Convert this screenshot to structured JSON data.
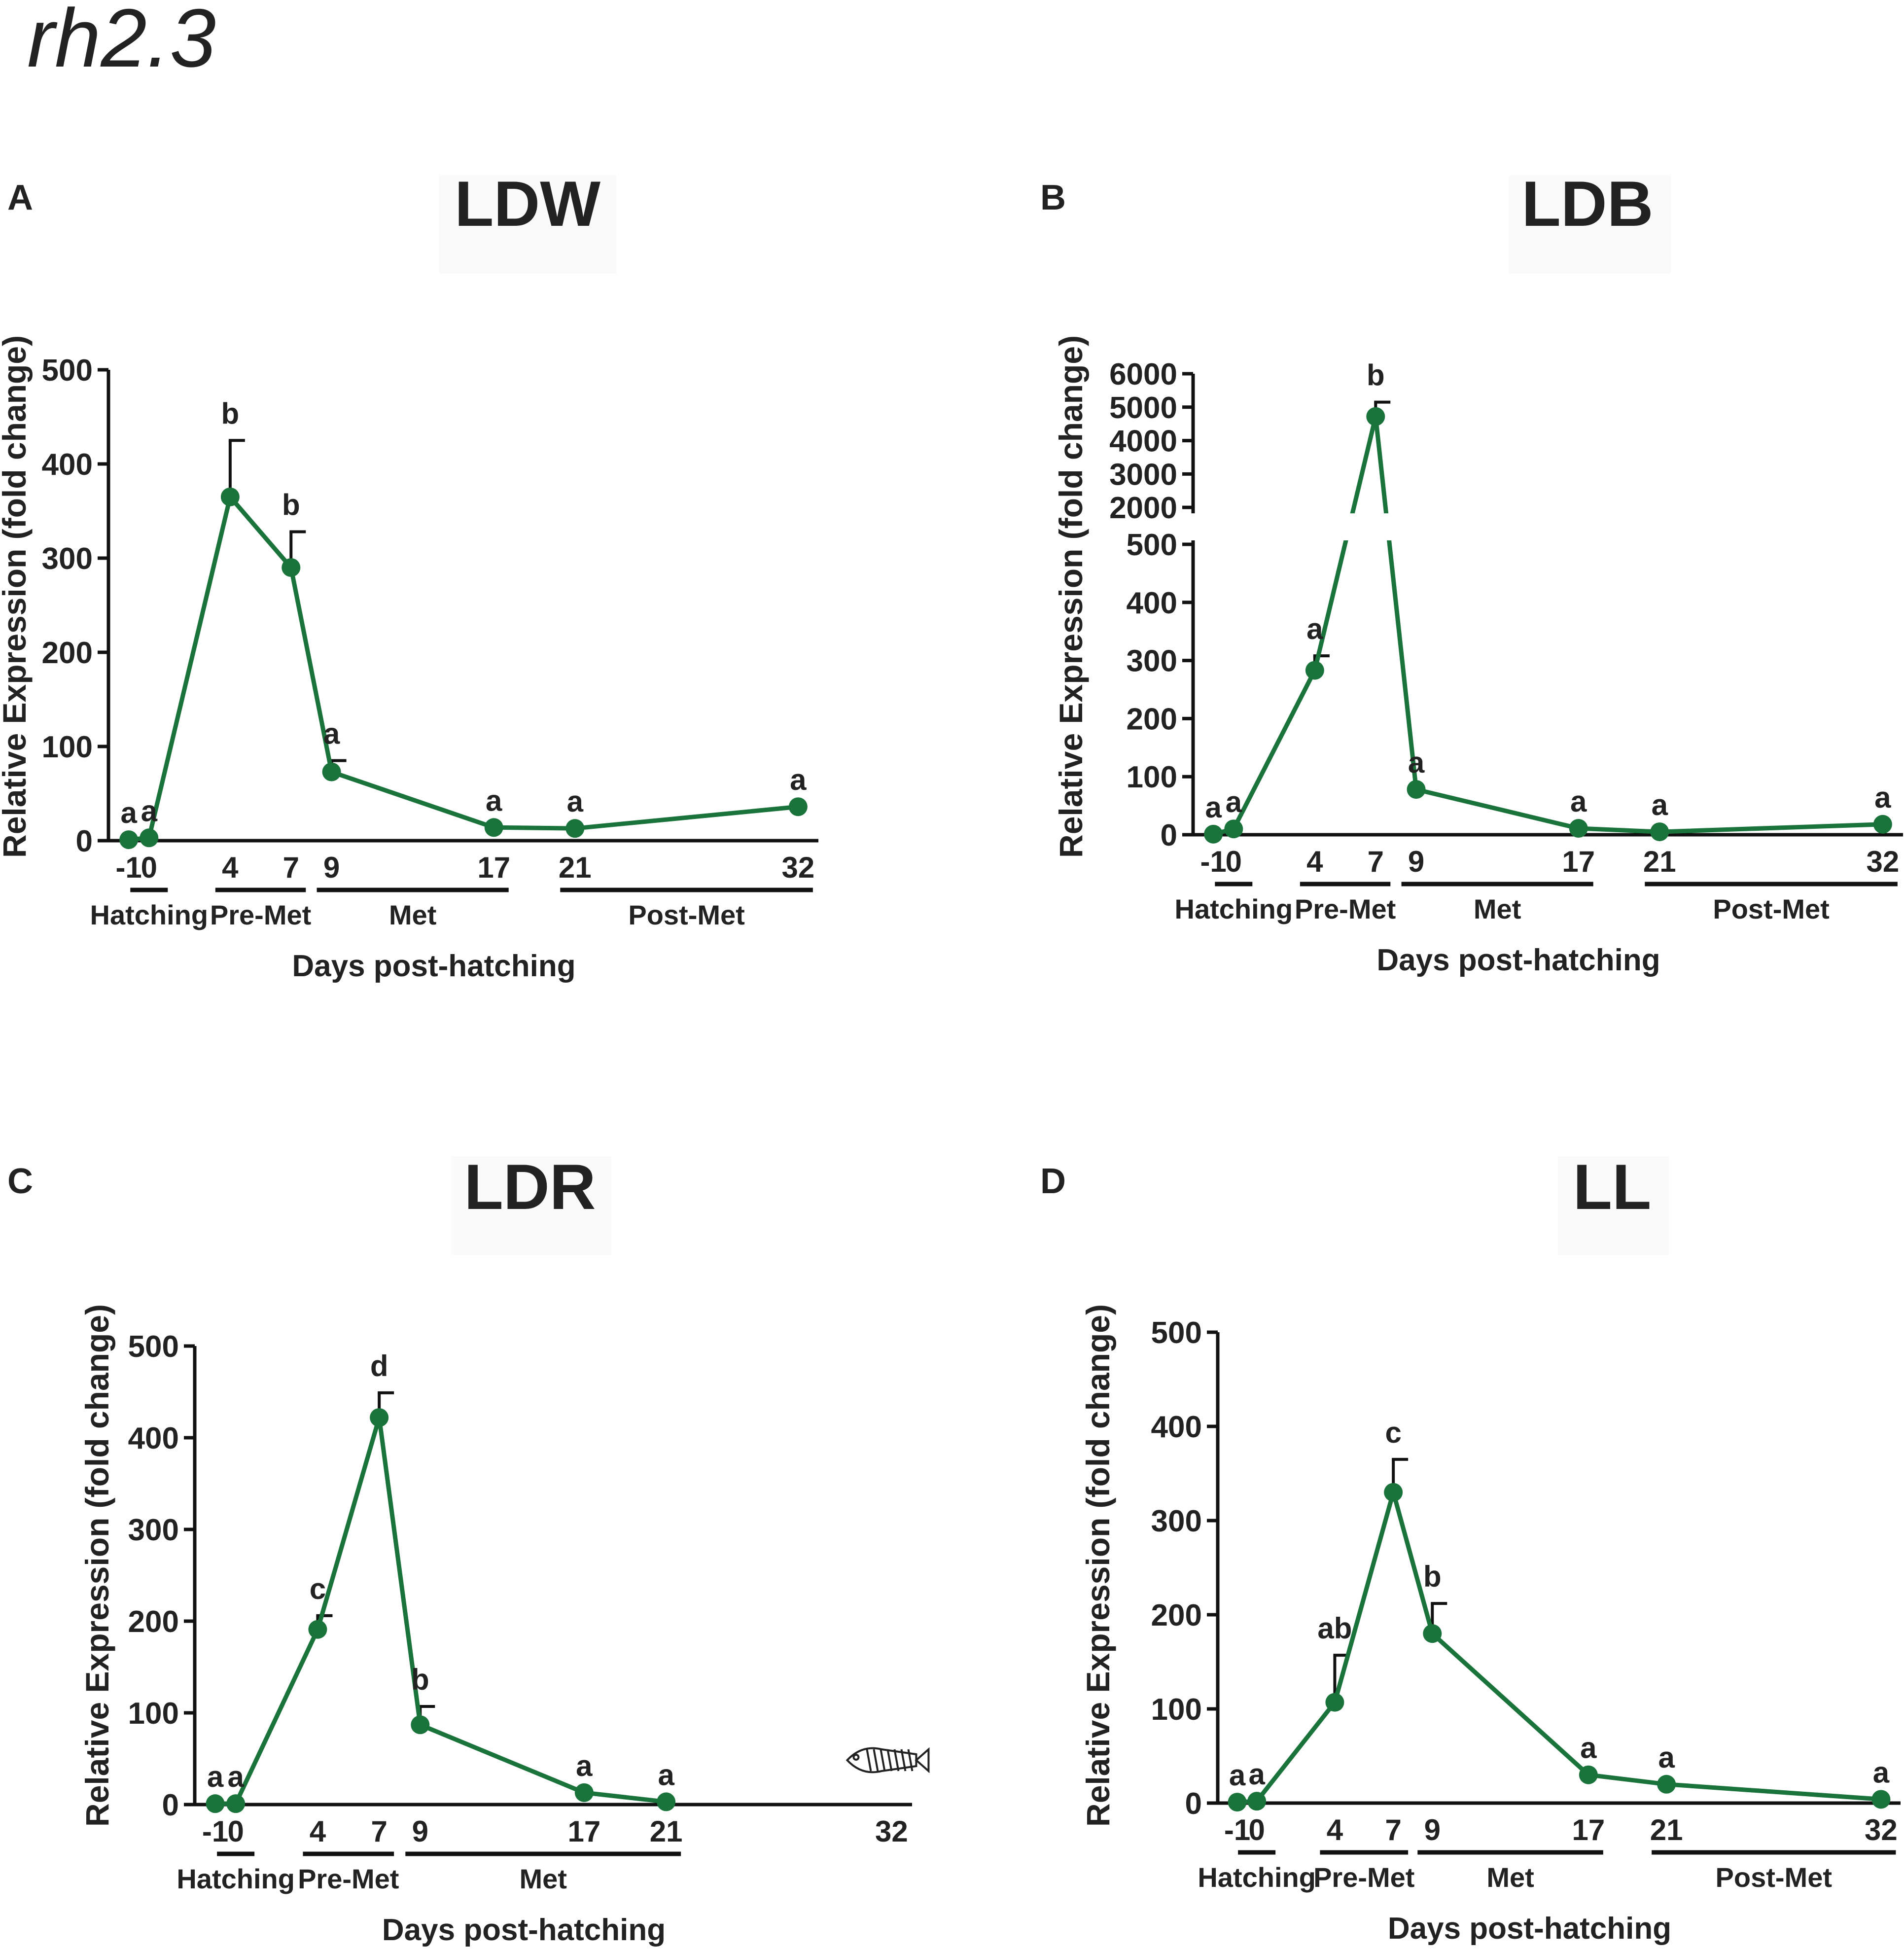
{
  "figure_title": "rh2.3",
  "colors": {
    "series": "#19733a",
    "axis": "#111111",
    "text": "#222222"
  },
  "icons": {
    "fish": "fish-skeleton-icon"
  },
  "chart_data": [
    {
      "panel": "A",
      "title": "LDW",
      "type": "line",
      "xlabel": "Days post-hatching",
      "ylabel": "Relative Expression (fold change)",
      "x": [
        -1,
        0,
        4,
        7,
        9,
        17,
        21,
        32
      ],
      "x_ticks": [
        "-1",
        "0",
        "4",
        "7",
        "9",
        "17",
        "21",
        "32"
      ],
      "values": [
        1,
        3,
        365,
        290,
        73,
        14,
        13,
        36
      ],
      "errors": [
        0,
        0,
        60,
        38,
        12,
        0,
        0,
        0
      ],
      "letters": [
        "a",
        "a",
        "b",
        "b",
        "a",
        "a",
        "a",
        "a"
      ],
      "ylim": [
        0,
        500
      ],
      "y_ticks": [
        0,
        100,
        200,
        300,
        400,
        500
      ],
      "stages": [
        {
          "label": "Hatching",
          "from": 0,
          "to": 0
        },
        {
          "label": "Pre-Met",
          "from": 4,
          "to": 7
        },
        {
          "label": "Met",
          "from": 9,
          "to": 17
        },
        {
          "label": "Post-Met",
          "from": 21,
          "to": 32
        }
      ]
    },
    {
      "panel": "B",
      "title": "LDB",
      "type": "line",
      "xlabel": "Days post-hatching",
      "ylabel": "Relative Expression (fold change)",
      "x": [
        -1,
        0,
        4,
        7,
        9,
        17,
        21,
        32
      ],
      "x_ticks": [
        "-1",
        "0",
        "4",
        "7",
        "9",
        "17",
        "21",
        "32"
      ],
      "values": [
        1,
        10,
        283,
        4720,
        78,
        11,
        5,
        18
      ],
      "errors": [
        0,
        0,
        25,
        430,
        0,
        0,
        0,
        0
      ],
      "letters": [
        "a",
        "a",
        "a",
        "b",
        "a",
        "a",
        "a",
        "a"
      ],
      "ylim": [
        0,
        6000
      ],
      "y_axis_break": [
        500,
        2000
      ],
      "y_ticks_lower": [
        0,
        100,
        200,
        300,
        400,
        500
      ],
      "y_ticks_upper": [
        2000,
        3000,
        4000,
        5000,
        6000
      ],
      "stages": [
        {
          "label": "Hatching",
          "from": 0,
          "to": 0
        },
        {
          "label": "Pre-Met",
          "from": 4,
          "to": 7
        },
        {
          "label": "Met",
          "from": 9,
          "to": 17
        },
        {
          "label": "Post-Met",
          "from": 21,
          "to": 32
        }
      ]
    },
    {
      "panel": "C",
      "title": "LDR",
      "type": "line",
      "xlabel": "Days post-hatching",
      "ylabel": "Relative Expression (fold change)",
      "x": [
        -1,
        0,
        4,
        7,
        9,
        17,
        21
      ],
      "x_ticks": [
        "-1",
        "0",
        "4",
        "7",
        "9",
        "17",
        "21",
        "32"
      ],
      "x_max": 32,
      "values": [
        1,
        1,
        191,
        422,
        87,
        13,
        3
      ],
      "errors": [
        0,
        0,
        15,
        27,
        20,
        0,
        0
      ],
      "letters": [
        "a",
        "a",
        "c",
        "d",
        "b",
        "a",
        "a"
      ],
      "ylim": [
        0,
        500
      ],
      "y_ticks": [
        0,
        100,
        200,
        300,
        400,
        500
      ],
      "stages": [
        {
          "label": "Hatching",
          "from": 0,
          "to": 0
        },
        {
          "label": "Pre-Met",
          "from": 4,
          "to": 7
        },
        {
          "label": "Met",
          "from": 9,
          "to": 21
        }
      ],
      "annotation": "fish-skeleton-icon at day 32"
    },
    {
      "panel": "D",
      "title": "LL",
      "type": "line",
      "xlabel": "Days post-hatching",
      "ylabel": "Relative Expression (fold change)",
      "x": [
        -1,
        0,
        4,
        7,
        9,
        17,
        21,
        32
      ],
      "x_ticks": [
        "-1",
        "0",
        "4",
        "7",
        "9",
        "17",
        "21",
        "32"
      ],
      "values": [
        1,
        2,
        107,
        330,
        180,
        30,
        20,
        4
      ],
      "errors": [
        0,
        0,
        50,
        35,
        32,
        0,
        0,
        0
      ],
      "letters": [
        "a",
        "a",
        "ab",
        "c",
        "b",
        "a",
        "a",
        "a"
      ],
      "ylim": [
        0,
        500
      ],
      "y_ticks": [
        0,
        100,
        200,
        300,
        400,
        500
      ],
      "stages": [
        {
          "label": "Hatching",
          "from": 0,
          "to": 0
        },
        {
          "label": "Pre-Met",
          "from": 4,
          "to": 7
        },
        {
          "label": "Met",
          "from": 9,
          "to": 17
        },
        {
          "label": "Post-Met",
          "from": 21,
          "to": 32
        }
      ]
    }
  ]
}
